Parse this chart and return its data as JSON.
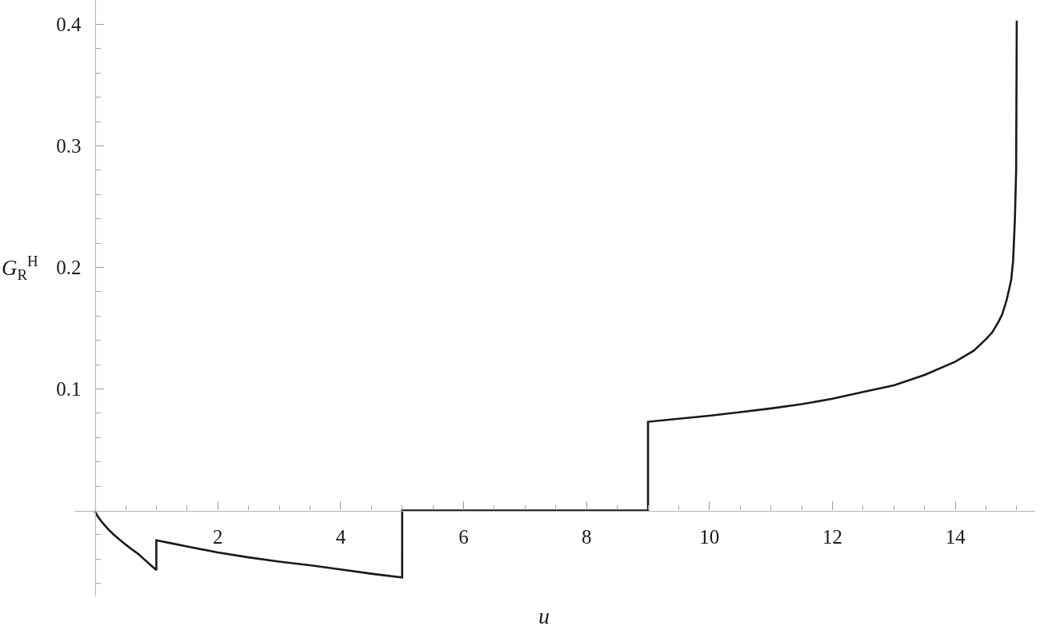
{
  "chart_data": {
    "type": "line",
    "xlabel": "u",
    "ylabel": "G$_{R}$$^{H}$",
    "line_style": "solid",
    "x": [
      0,
      0.02,
      0.05,
      0.1,
      0.15,
      0.22,
      0.3,
      0.4,
      0.5,
      0.6,
      0.7,
      0.8,
      0.9,
      1,
      1,
      1.25,
      1.5,
      2,
      2.5,
      3,
      3.5,
      4,
      4.5,
      5,
      5,
      9,
      9,
      9.5,
      10,
      10.5,
      11,
      11.5,
      12,
      12.5,
      13,
      13.5,
      14,
      14.3,
      14.5,
      14.6,
      14.7,
      14.76,
      14.84,
      14.88,
      14.91,
      14.94,
      14.97,
      14.99,
      15
    ],
    "series": [
      {
        "color": "#1a1a1a",
        "values": [
          0,
          -0.0025,
          -0.005,
          -0.0085,
          -0.0115,
          -0.0155,
          -0.0195,
          -0.0238,
          -0.028,
          -0.0318,
          -0.0355,
          -0.04,
          -0.0445,
          -0.049,
          -0.0245,
          -0.027,
          -0.0295,
          -0.0345,
          -0.0385,
          -0.042,
          -0.045,
          -0.0485,
          -0.052,
          -0.055,
          0,
          0,
          0.073,
          0.0755,
          0.078,
          0.081,
          0.084,
          0.0875,
          0.092,
          0.0975,
          0.103,
          0.1115,
          0.1225,
          0.1315,
          0.141,
          0.1465,
          0.155,
          0.161,
          0.174,
          0.183,
          0.19,
          0.205,
          0.24,
          0.28,
          0.403
        ]
      }
    ],
    "xlim": [
      -0.32,
      15.3
    ],
    "ylim": [
      -0.07,
      0.42
    ],
    "xticks": [
      {
        "value": 0.5,
        "label": null
      },
      {
        "value": 1,
        "label": null
      },
      {
        "value": 1.5,
        "label": null
      },
      2,
      {
        "value": 2.5,
        "label": null
      },
      {
        "value": 3,
        "label": null
      },
      {
        "value": 3.5,
        "label": null
      },
      4,
      {
        "value": 4.5,
        "label": null
      },
      {
        "value": 5,
        "label": null
      },
      {
        "value": 5.5,
        "label": null
      },
      6,
      {
        "value": 6.5,
        "label": null
      },
      {
        "value": 7,
        "label": null
      },
      {
        "value": 7.5,
        "label": null
      },
      8,
      {
        "value": 8.5,
        "label": null
      },
      {
        "value": 9,
        "label": null
      },
      {
        "value": 9.5,
        "label": null
      },
      10,
      {
        "value": 10.5,
        "label": null
      },
      {
        "value": 11,
        "label": null
      },
      {
        "value": 11.5,
        "label": null
      },
      12,
      {
        "value": 12.5,
        "label": null
      },
      {
        "value": 13,
        "label": null
      },
      {
        "value": 13.5,
        "label": null
      },
      14,
      {
        "value": 14.5,
        "label": null
      },
      {
        "value": 15,
        "label": null
      }
    ],
    "yticks": [
      {
        "value": -0.06,
        "label": null
      },
      {
        "value": -0.04,
        "label": null
      },
      {
        "value": -0.02,
        "label": null
      },
      {
        "value": 0.02,
        "label": null
      },
      {
        "value": 0.04,
        "label": null
      },
      {
        "value": 0.06,
        "label": null
      },
      {
        "value": 0.08,
        "label": null
      },
      0.1,
      {
        "value": 0.12,
        "label": null
      },
      {
        "value": 0.14,
        "label": null
      },
      {
        "value": 0.16,
        "label": null
      },
      {
        "value": 0.18,
        "label": null
      },
      0.2,
      {
        "value": 0.22,
        "label": null
      },
      {
        "value": 0.24,
        "label": null
      },
      {
        "value": 0.26,
        "label": null
      },
      {
        "value": 0.28,
        "label": null
      },
      0.3,
      {
        "value": 0.32,
        "label": null
      },
      {
        "value": 0.34,
        "label": null
      },
      {
        "value": 0.36,
        "label": null
      },
      {
        "value": 0.38,
        "label": null
      },
      0.4
    ]
  }
}
